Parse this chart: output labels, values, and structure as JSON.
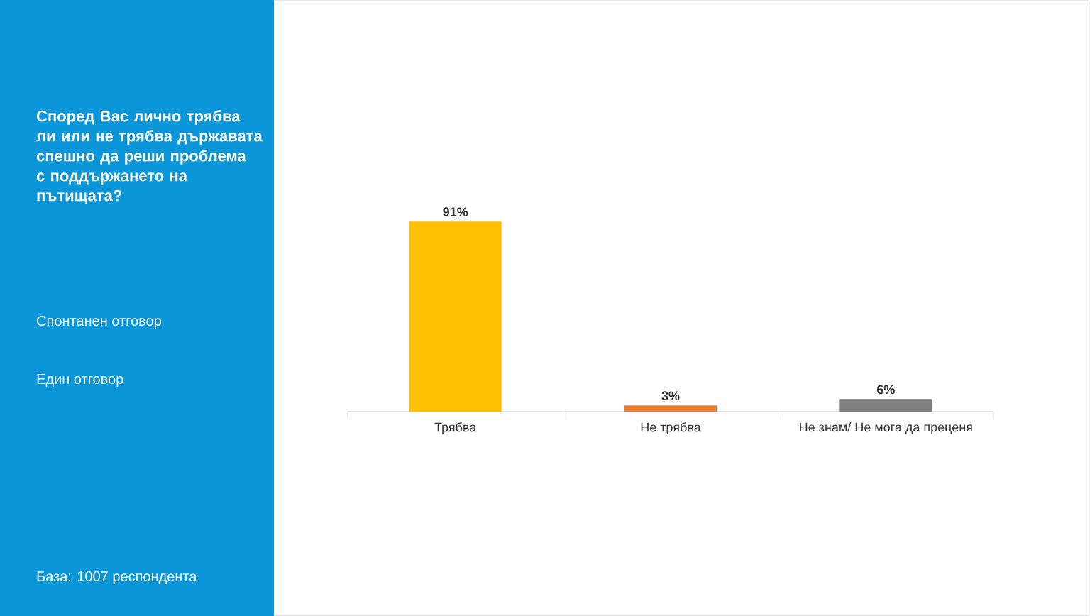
{
  "chart_data": {
    "type": "bar",
    "title": "Според Вас лично трябва ли или не трябва държавата спешно да реши проблема с поддържането на пътищата?",
    "subtitle": "Спонтанен отговор",
    "annotations": [
      "Един отговор",
      "База:  1007 респондента"
    ],
    "categories": [
      "Трябва",
      "Не трябва",
      "Не знам/ Не мога да преценя"
    ],
    "values": [
      91,
      3,
      6
    ],
    "colors": [
      "#ffc000",
      "#ed7d31",
      "#7f7f7f"
    ],
    "value_labels": [
      "91%",
      "3%",
      "6%"
    ]
  }
}
